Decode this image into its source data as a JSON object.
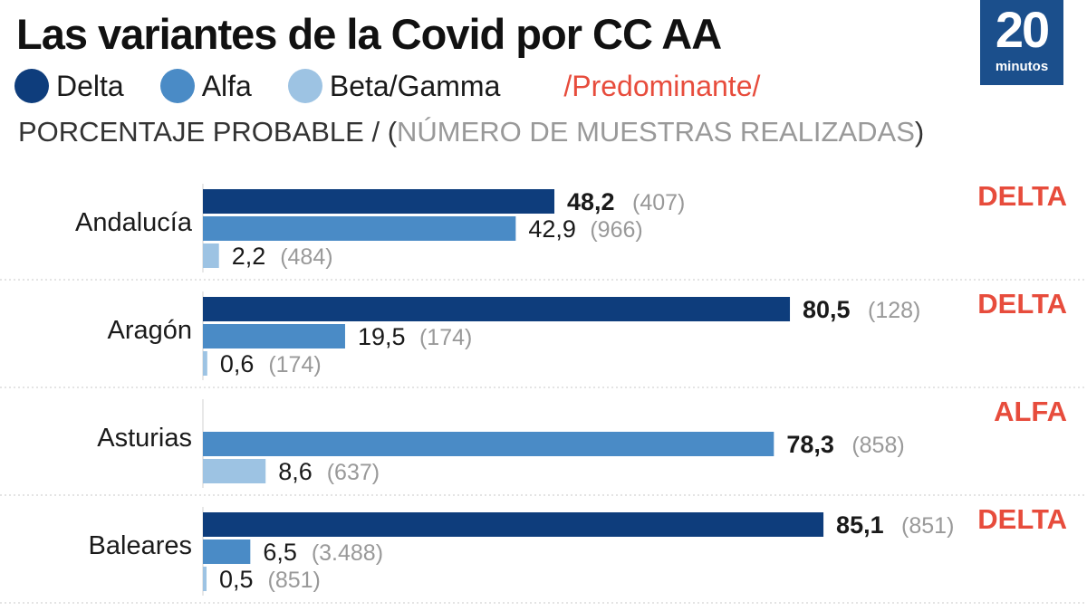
{
  "header": {
    "title": "Las variantes de la Covid por CC AA",
    "subtitle_main": "PORCENTAJE PROBABLE / (",
    "subtitle_gray": "NÚMERO DE MUESTRAS REALIZADAS",
    "subtitle_close": ")",
    "predominant_label": "/Predominante/"
  },
  "logo": {
    "number": "20",
    "word": "minutos"
  },
  "colors": {
    "delta": "#0e3d7c",
    "alfa": "#4a8bc6",
    "beta_gamma": "#9dc3e3",
    "predominant": "#e74c3c",
    "samples": "#999999"
  },
  "chart_data": {
    "type": "bar",
    "orientation": "horizontal",
    "title": "Las variantes de la Covid por CC AA",
    "subtitle": "PORCENTAJE PROBABLE / (NÚMERO DE MUESTRAS REALIZADAS)",
    "xlim": [
      0,
      100
    ],
    "legend": [
      {
        "key": "delta",
        "name": "Delta"
      },
      {
        "key": "alfa",
        "name": "Alfa"
      },
      {
        "key": "beta_gamma",
        "name": "Beta/Gamma"
      }
    ],
    "legend_position": "top-left",
    "regions": [
      {
        "name": "Andalucía",
        "predominant": "DELTA",
        "bars": [
          {
            "variant": "delta",
            "value": 48.2,
            "label": "48,2",
            "samples": "(407)",
            "bold": true
          },
          {
            "variant": "alfa",
            "value": 42.9,
            "label": "42,9",
            "samples": "(966)",
            "bold": false
          },
          {
            "variant": "beta_gamma",
            "value": 2.2,
            "label": "2,2",
            "samples": "(484)",
            "bold": false
          }
        ]
      },
      {
        "name": "Aragón",
        "predominant": "DELTA",
        "bars": [
          {
            "variant": "delta",
            "value": 80.5,
            "label": "80,5",
            "samples": "(128)",
            "bold": true
          },
          {
            "variant": "alfa",
            "value": 19.5,
            "label": "19,5",
            "samples": "(174)",
            "bold": false
          },
          {
            "variant": "beta_gamma",
            "value": 0.6,
            "label": "0,6",
            "samples": "(174)",
            "bold": false
          }
        ]
      },
      {
        "name": "Asturias",
        "predominant": "ALFA",
        "bars": [
          {
            "variant": "delta",
            "value": null,
            "label": "",
            "samples": "",
            "bold": false
          },
          {
            "variant": "alfa",
            "value": 78.3,
            "label": "78,3",
            "samples": "(858)",
            "bold": true
          },
          {
            "variant": "beta_gamma",
            "value": 8.6,
            "label": "8,6",
            "samples": "(637)",
            "bold": false
          }
        ]
      },
      {
        "name": "Baleares",
        "predominant": "DELTA",
        "bars": [
          {
            "variant": "delta",
            "value": 85.1,
            "label": "85,1",
            "samples": "(851)",
            "bold": true
          },
          {
            "variant": "alfa",
            "value": 6.5,
            "label": "6,5",
            "samples": "(3.488)",
            "bold": false
          },
          {
            "variant": "beta_gamma",
            "value": 0.5,
            "label": "0,5",
            "samples": "(851)",
            "bold": false
          }
        ]
      }
    ]
  }
}
